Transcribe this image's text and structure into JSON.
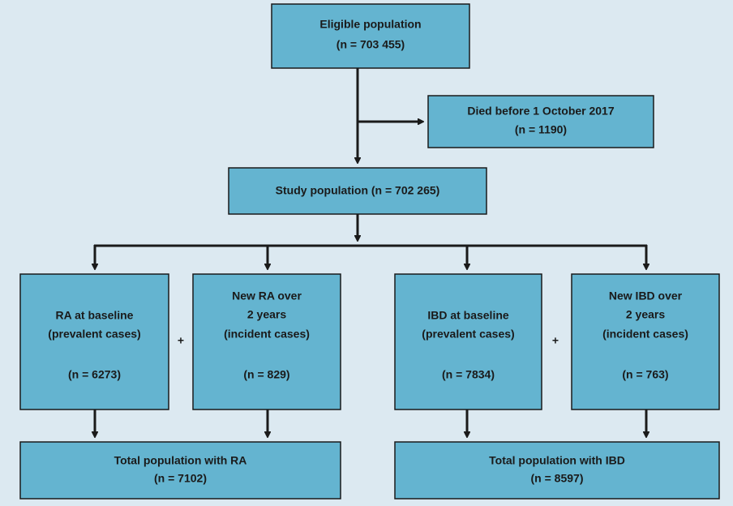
{
  "nodes": [
    {
      "lines": [
        "Eligible population",
        "(n = 703 455)"
      ]
    },
    {
      "lines": [
        "Died before 1 October 2017",
        "(n = 1190)"
      ]
    },
    {
      "lines": [
        "Study population (n = 702 265)"
      ]
    },
    {
      "lines": [
        "RA at baseline",
        "(prevalent cases)",
        "(n = 6273)"
      ]
    },
    {
      "lines": [
        "New RA over",
        "2 years",
        "(incident cases)",
        "(n = 829)"
      ]
    },
    {
      "lines": [
        "IBD at baseline",
        "(prevalent cases)",
        "(n = 7834)"
      ]
    },
    {
      "lines": [
        "New IBD over",
        "2 years",
        "(incident cases)",
        "(n = 763)"
      ]
    },
    {
      "lines": [
        "Total population with RA",
        "(n = 7102)"
      ]
    },
    {
      "lines": [
        "Total population with IBD",
        "(n = 8597)"
      ]
    }
  ],
  "plus_signs": [
    "+",
    "+"
  ]
}
